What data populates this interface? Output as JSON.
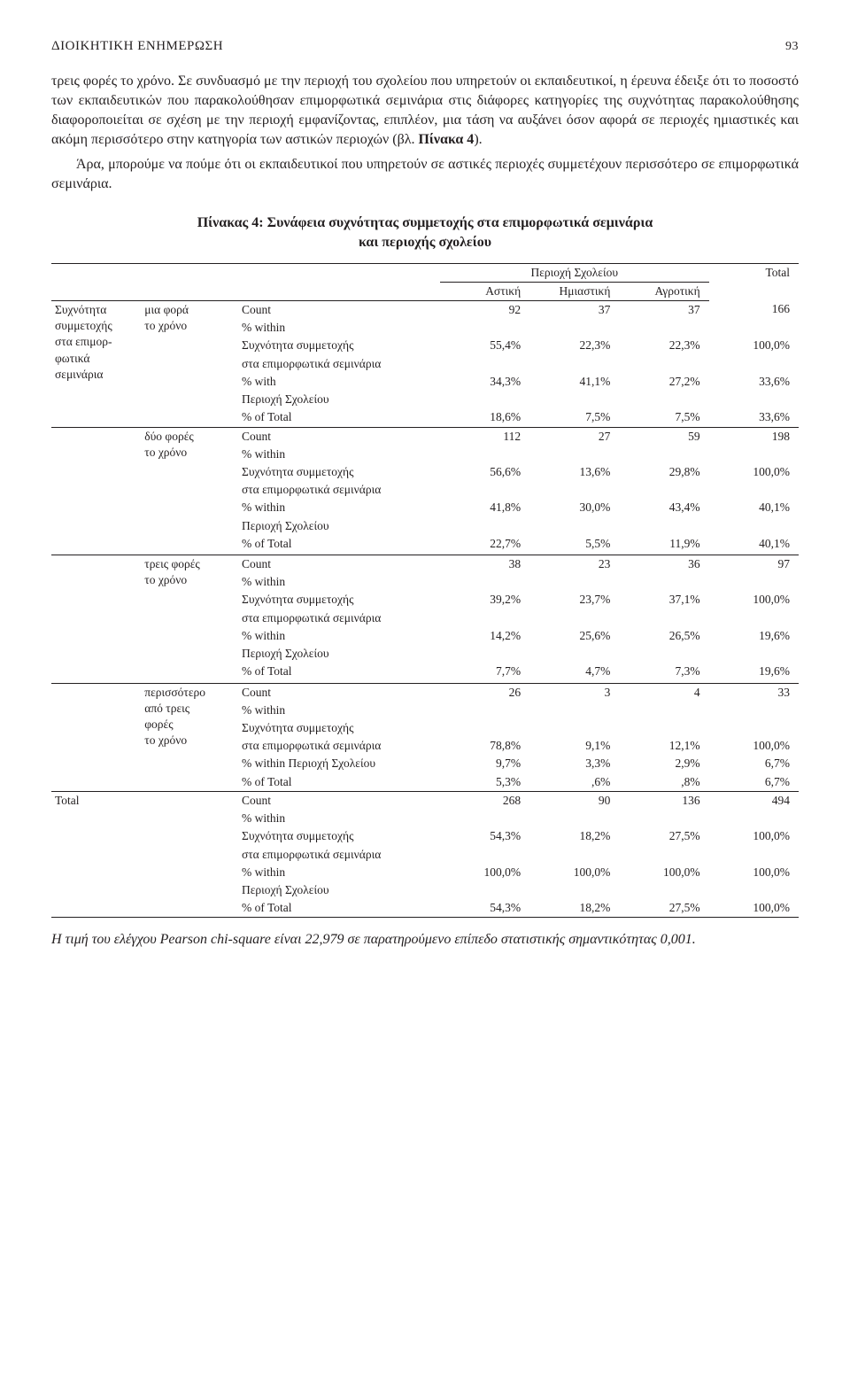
{
  "header": {
    "title": "ΔIOIKHTIKH ENHMEPΩΣH",
    "page": "93"
  },
  "para1_lead": "τρεις φορές το χρόνο. ",
  "para1": "Σε συνδυασμό με την περιοχή του σχολείου που υπηρετούν οι εκπαιδευτικοί, η έρευνα έδειξε ότι το ποσοστό των εκπαιδευτικών που παρακολούθησαν επιμορφωτικά σεμινάρια στις διάφορες κατηγορίες της συχνότητας παρακολούθησης διαφοροποιείται σε σχέση με την περιοχή εμφανίζοντας, επιπλέον, μια τάση να αυξάνει όσον αφορά σε περιοχές ημιαστικές και ακόμη περισσότερο στην κατηγορία των αστικών περιοχών (βλ. ",
  "para1_bold": "Πίνακα 4",
  "para1_tail": ").",
  "para2": "Άρα, μπορούμε να πούμε ότι οι εκπαιδευτικοί που υπηρετούν σε αστικές περιοχές συμμετέχουν περισσότερο σε επιμορφωτικά σεμινάρια.",
  "table": {
    "caption_l1": "Πίνακας 4: Συνάφεια συχνότητας συμμετοχής στα επιμορφωτικά σεμινάρια",
    "caption_l2": "και περιοχής σχολείου",
    "head_group": "Περιοχή Σχολείου",
    "head_total": "Total",
    "head_sub": [
      "Αστική",
      "Ημιαστική",
      "Αγροτική"
    ],
    "stub_l1": "Συχνότητα",
    "stub_l2": "συμμετοχής",
    "stub_l3": "στα επιμορ-",
    "stub_l4": "φωτικά",
    "stub_l5": "σεμινάρια",
    "lbl_count": "Count",
    "lbl_within": "% within",
    "lbl_freq_l1": "Συχνότητα συμμετοχής",
    "lbl_freq_l2": "στα επιμορφωτικά σεμινάρια",
    "lbl_with": "% with",
    "lbl_region": "Περιοχή Σχολείου",
    "lbl_within_region": "% within Περιοχή Σχολείου",
    "lbl_oftotal": "% of Total",
    "cats": {
      "c1_l1": "μια φορά",
      "c1_l2": "το χρόνο",
      "c2_l1": "δύο φορές",
      "c2_l2": "το χρόνο",
      "c3_l1": "τρεις φορές",
      "c3_l2": "το χρόνο",
      "c4_l1": "περισσότερο",
      "c4_l2": "από τρεις",
      "c4_l3": "φορές",
      "c4_l4": "το χρόνο"
    },
    "total_label": "Total",
    "vals": {
      "r1_count": [
        "92",
        "37",
        "37",
        "166"
      ],
      "r1_freq": [
        "55,4%",
        "22,3%",
        "22,3%",
        "100,0%"
      ],
      "r1_reg": [
        "34,3%",
        "41,1%",
        "27,2%",
        "33,6%"
      ],
      "r1_tot": [
        "18,6%",
        "7,5%",
        "7,5%",
        "33,6%"
      ],
      "r2_count": [
        "112",
        "27",
        "59",
        "198"
      ],
      "r2_freq": [
        "56,6%",
        "13,6%",
        "29,8%",
        "100,0%"
      ],
      "r2_reg": [
        "41,8%",
        "30,0%",
        "43,4%",
        "40,1%"
      ],
      "r2_tot": [
        "22,7%",
        "5,5%",
        "11,9%",
        "40,1%"
      ],
      "r3_count": [
        "38",
        "23",
        "36",
        "97"
      ],
      "r3_freq": [
        "39,2%",
        "23,7%",
        "37,1%",
        "100,0%"
      ],
      "r3_reg": [
        "14,2%",
        "25,6%",
        "26,5%",
        "19,6%"
      ],
      "r3_tot": [
        "7,7%",
        "4,7%",
        "7,3%",
        "19,6%"
      ],
      "r4_count": [
        "26",
        "3",
        "4",
        "33"
      ],
      "r4_freq": [
        "78,8%",
        "9,1%",
        "12,1%",
        "100,0%"
      ],
      "r4_reg": [
        "9,7%",
        "3,3%",
        "2,9%",
        "6,7%"
      ],
      "r4_tot": [
        "5,3%",
        ",6%",
        ",8%",
        "6,7%"
      ],
      "t_count": [
        "268",
        "90",
        "136",
        "494"
      ],
      "t_freq": [
        "54,3%",
        "18,2%",
        "27,5%",
        "100,0%"
      ],
      "t_reg": [
        "100,0%",
        "100,0%",
        "100,0%",
        "100,0%"
      ],
      "t_tot": [
        "54,3%",
        "18,2%",
        "27,5%",
        "100,0%"
      ]
    }
  },
  "footnote": "Η τιμή του ελέγχου Pearson chi-square είναι 22,979 σε παρατηρούμενο επίπεδο στατιστικής σημαντικότητας 0,001."
}
